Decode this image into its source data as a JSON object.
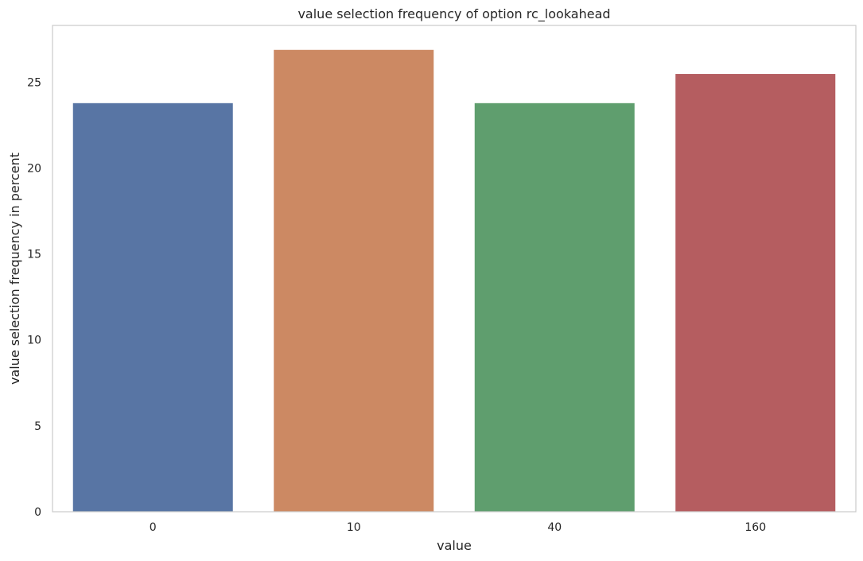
{
  "chart_data": {
    "type": "bar",
    "title": "value selection frequency of option rc_lookahead",
    "xlabel": "value",
    "ylabel": "value selection frequency in percent",
    "categories": [
      "0",
      "10",
      "40",
      "160"
    ],
    "values": [
      23.8,
      26.9,
      23.8,
      25.5
    ],
    "colors": [
      "#5875a4",
      "#cc8963",
      "#5f9e6e",
      "#b55d60"
    ],
    "ylim": [
      0,
      28.3
    ],
    "yticks": [
      0,
      5,
      10,
      15,
      20,
      25
    ],
    "grid": false,
    "legend": "none"
  }
}
